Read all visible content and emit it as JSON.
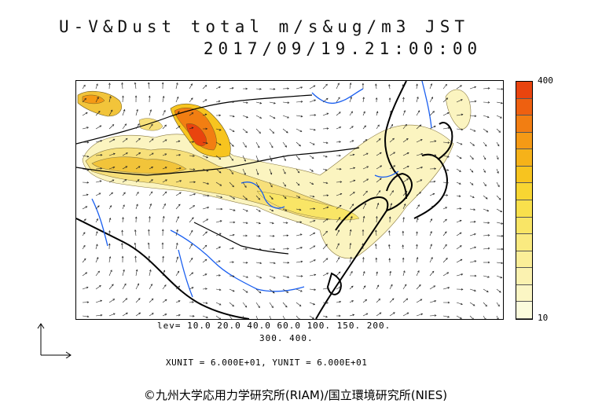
{
  "title_line1": "U-V&Dust total m/s&ug/m3 JST",
  "title_line2": "2017/09/19.21:00:00",
  "colorbar": {
    "max_label": "400",
    "min_label": "10",
    "colors": [
      "#fbfbdc",
      "#fbf6c4",
      "#fbf2b0",
      "#fbee98",
      "#faea80",
      "#f9e566",
      "#f9e04c",
      "#f8d632",
      "#f7c41f",
      "#f6b219",
      "#f59a15",
      "#f27e12",
      "#ee6010",
      "#e9440e"
    ]
  },
  "levels_line1": "lev= 10.0 20.0 40.0 60.0 100. 150. 200.",
  "levels_line2": "300. 400.",
  "units_text": "XUNIT = 6.000E+01, YUNIT = 6.000E+01",
  "copyright": "©九州大学応用力学研究所(RIAM)/国立環境研究所(NIES)",
  "map_colors": {
    "land_border": "#000000",
    "river": "#1a5ff0",
    "dust_light": "#fbf4c0",
    "dust_mid": "#f7e07a",
    "dust_dark": "#f2c43a",
    "dust_hot": "#e9440e"
  },
  "wind_field": {
    "u_base": 0.6,
    "v_base": 0.25
  }
}
